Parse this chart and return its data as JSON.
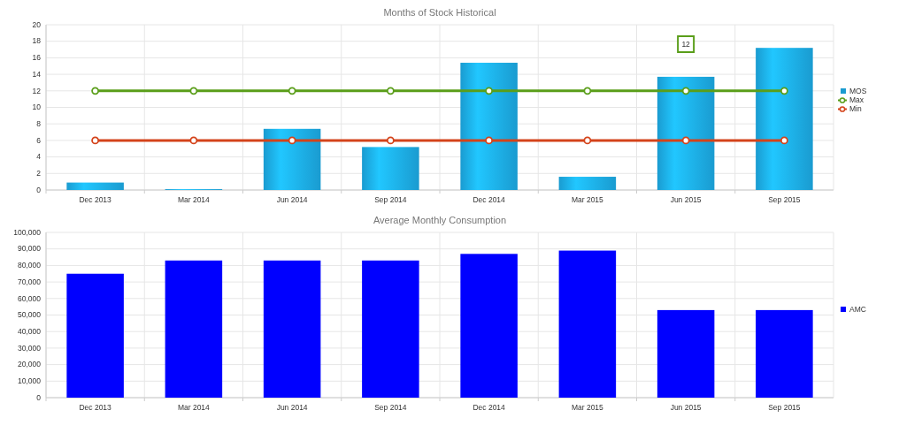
{
  "chart_data": [
    {
      "type": "bar",
      "title": "Months of Stock Historical",
      "categories": [
        "Dec 2013",
        "Mar 2014",
        "Jun 2014",
        "Sep 2014",
        "Dec 2014",
        "Mar 2015",
        "Jun 2015",
        "Sep 2015"
      ],
      "series": [
        {
          "name": "MOS",
          "color": "#1a9bd0",
          "values": [
            0.9,
            0.1,
            7.4,
            5.2,
            15.4,
            1.6,
            13.7,
            17.2
          ]
        },
        {
          "name": "Max",
          "type": "line",
          "color": "#5a9e1a",
          "values": [
            12,
            12,
            12,
            12,
            12,
            12,
            12,
            12
          ]
        },
        {
          "name": "Min",
          "type": "line",
          "color": "#d4431a",
          "values": [
            6,
            6,
            6,
            6,
            6,
            6,
            6,
            6
          ]
        }
      ],
      "ylim": [
        0,
        20
      ],
      "yticks": [
        0,
        2,
        4,
        6,
        8,
        10,
        12,
        14,
        16,
        18,
        20
      ],
      "grid": true,
      "legend": "right",
      "marker": "circle",
      "annotations": [
        "12"
      ]
    },
    {
      "type": "bar",
      "title": "Average Monthly Consumption",
      "categories": [
        "Dec 2013",
        "Mar 2014",
        "Jun 2014",
        "Sep 2014",
        "Dec 2014",
        "Mar 2015",
        "Jun 2015",
        "Sep 2015"
      ],
      "series": [
        {
          "name": "AMC",
          "color": "#0000ff",
          "values": [
            75000,
            83000,
            83000,
            83000,
            87000,
            89000,
            53000,
            53000
          ]
        }
      ],
      "ylim": [
        0,
        100000
      ],
      "yticks": [
        {
          "value": 0,
          "label": "0"
        },
        {
          "value": 10000,
          "label": "10,000"
        },
        {
          "value": 20000,
          "label": "20,000"
        },
        {
          "value": 30000,
          "label": "30,000"
        },
        {
          "value": 40000,
          "label": "40,000"
        },
        {
          "value": 50000,
          "label": "50,000"
        },
        {
          "value": 60000,
          "label": "60,000"
        },
        {
          "value": 70000,
          "label": "70,000"
        },
        {
          "value": 80000,
          "label": "80,000"
        },
        {
          "value": 90000,
          "label": "90,000"
        },
        {
          "value": 100000,
          "label": "100,000"
        }
      ],
      "grid": true,
      "legend": "right"
    }
  ]
}
